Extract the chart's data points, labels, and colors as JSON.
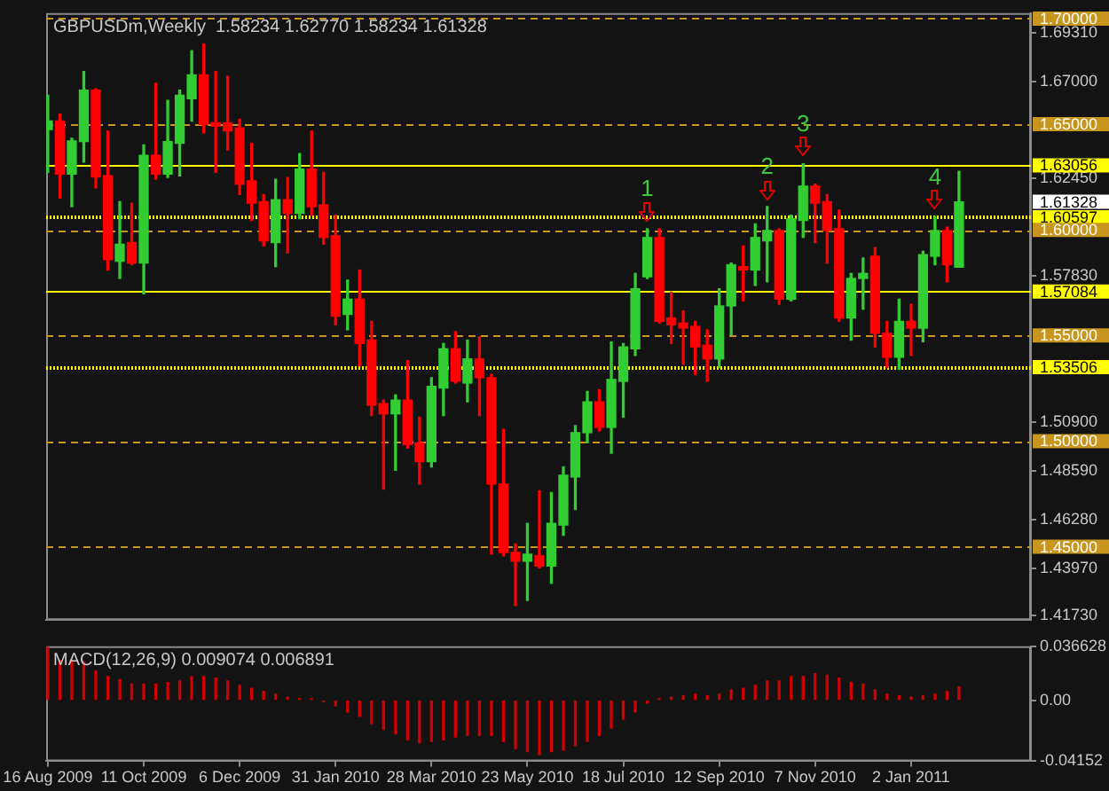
{
  "chart_data": [
    {
      "type": "candlestick",
      "title": "GBPUSDm,Weekly  1.58234 1.62770 1.58234 1.61328",
      "x": [
        "2009-08-16",
        "2009-08-23",
        "2009-08-30",
        "2009-09-06",
        "2009-09-13",
        "2009-09-20",
        "2009-09-27",
        "2009-10-04",
        "2009-10-11",
        "2009-10-18",
        "2009-10-25",
        "2009-11-01",
        "2009-11-08",
        "2009-11-15",
        "2009-11-22",
        "2009-11-29",
        "2009-12-06",
        "2009-12-13",
        "2009-12-20",
        "2009-12-27",
        "2010-01-03",
        "2010-01-10",
        "2010-01-17",
        "2010-01-24",
        "2010-01-31",
        "2010-02-07",
        "2010-02-14",
        "2010-02-21",
        "2010-02-28",
        "2010-03-07",
        "2010-03-14",
        "2010-03-21",
        "2010-03-28",
        "2010-04-04",
        "2010-04-11",
        "2010-04-18",
        "2010-04-25",
        "2010-05-02",
        "2010-05-09",
        "2010-05-16",
        "2010-05-23",
        "2010-05-30",
        "2010-06-06",
        "2010-06-13",
        "2010-06-20",
        "2010-06-27",
        "2010-07-04",
        "2010-07-11",
        "2010-07-18",
        "2010-07-25",
        "2010-08-01",
        "2010-08-08",
        "2010-08-15",
        "2010-08-22",
        "2010-08-29",
        "2010-09-05",
        "2010-09-12",
        "2010-09-19",
        "2010-09-26",
        "2010-10-03",
        "2010-10-10",
        "2010-10-17",
        "2010-10-24",
        "2010-10-31",
        "2010-11-07",
        "2010-11-14",
        "2010-11-21",
        "2010-11-28",
        "2010-12-05",
        "2010-12-12",
        "2010-12-19",
        "2010-12-26",
        "2011-01-02",
        "2011-01-09",
        "2011-01-16",
        "2011-01-23",
        "2011-01-30"
      ],
      "ohlc": [
        [
          1.6475,
          1.6637,
          1.6272,
          1.6515
        ],
        [
          1.6515,
          1.6548,
          1.6151,
          1.6264
        ],
        [
          1.6264,
          1.6434,
          1.611,
          1.6421
        ],
        [
          1.6418,
          1.675,
          1.6321,
          1.6661
        ],
        [
          1.6661,
          1.6669,
          1.6199,
          1.625
        ],
        [
          1.6256,
          1.6467,
          1.581,
          1.5859
        ],
        [
          1.5851,
          1.6134,
          1.577,
          1.5932
        ],
        [
          1.594,
          1.6126,
          1.5835,
          1.5843
        ],
        [
          1.5843,
          1.6402,
          1.5697,
          1.6353
        ],
        [
          1.6353,
          1.6694,
          1.624,
          1.6264
        ],
        [
          1.6264,
          1.6613,
          1.6248,
          1.6418
        ],
        [
          1.641,
          1.6661,
          1.6256,
          1.6637
        ],
        [
          1.6621,
          1.6848,
          1.6515,
          1.6734
        ],
        [
          1.6734,
          1.688,
          1.6459,
          1.6499
        ],
        [
          1.6507,
          1.675,
          1.6272,
          1.6491
        ],
        [
          1.6507,
          1.6726,
          1.6378,
          1.6469
        ],
        [
          1.6483,
          1.6524,
          1.6167,
          1.6216
        ],
        [
          1.6232,
          1.641,
          1.6045,
          1.6126
        ],
        [
          1.6134,
          1.6167,
          1.5924,
          1.5948
        ],
        [
          1.594,
          1.624,
          1.5826,
          1.6143
        ],
        [
          1.6143,
          1.6248,
          1.5891,
          1.6078
        ],
        [
          1.6078,
          1.6361,
          1.6053,
          1.6288
        ],
        [
          1.6288,
          1.6467,
          1.607,
          1.611
        ],
        [
          1.6118,
          1.6272,
          1.5932,
          1.5964
        ],
        [
          1.5972,
          1.607,
          1.5551,
          1.5591
        ],
        [
          1.56,
          1.5762,
          1.5527,
          1.5672
        ],
        [
          1.5672,
          1.581,
          1.5356,
          1.5462
        ],
        [
          1.5478,
          1.5567,
          1.5121,
          1.517
        ],
        [
          1.5178,
          1.5194,
          1.4773,
          1.5129
        ],
        [
          1.5129,
          1.5219,
          1.4862,
          1.5194
        ],
        [
          1.5194,
          1.5381,
          1.4967,
          1.4984
        ],
        [
          1.4992,
          1.5113,
          1.4797,
          1.4903
        ],
        [
          1.4903,
          1.53,
          1.4878,
          1.5259
        ],
        [
          1.5251,
          1.5462,
          1.5121,
          1.5437
        ],
        [
          1.5437,
          1.5518,
          1.5275,
          1.5283
        ],
        [
          1.5275,
          1.5478,
          1.5186,
          1.5389
        ],
        [
          1.5389,
          1.5494,
          1.5121,
          1.53
        ],
        [
          1.53,
          1.5316,
          1.4465,
          1.4797
        ],
        [
          1.4797,
          1.5056,
          1.4457,
          1.4473
        ],
        [
          1.4473,
          1.4513,
          1.4222,
          1.4432
        ],
        [
          1.4432,
          1.4611,
          1.4246,
          1.4465
        ],
        [
          1.4457,
          1.4765,
          1.44,
          1.4408
        ],
        [
          1.4408,
          1.4757,
          1.4327,
          1.4611
        ],
        [
          1.4603,
          1.4878,
          1.4554,
          1.4838
        ],
        [
          1.483,
          1.5073,
          1.4676,
          1.504
        ],
        [
          1.504,
          1.5235,
          1.4992,
          1.5186
        ],
        [
          1.5186,
          1.5243,
          1.5048,
          1.5065
        ],
        [
          1.5065,
          1.547,
          1.4943,
          1.5292
        ],
        [
          1.5283,
          1.5462,
          1.5113,
          1.5446
        ],
        [
          1.5437,
          1.5794,
          1.5405,
          1.5721
        ],
        [
          1.5778,
          1.6005,
          1.577,
          1.5964
        ],
        [
          1.5964,
          1.6005,
          1.5559,
          1.5567
        ],
        [
          1.5583,
          1.5705,
          1.5462,
          1.5551
        ],
        [
          1.5559,
          1.5616,
          1.5364,
          1.5535
        ],
        [
          1.5543,
          1.5567,
          1.5316,
          1.5446
        ],
        [
          1.5454,
          1.5527,
          1.5283,
          1.5389
        ],
        [
          1.5389,
          1.5721,
          1.5348,
          1.564
        ],
        [
          1.564,
          1.5843,
          1.5502,
          1.5835
        ],
        [
          1.5826,
          1.5924,
          1.5664,
          1.581
        ],
        [
          1.581,
          1.6029,
          1.5737,
          1.5964
        ],
        [
          1.5948,
          1.611,
          1.5754,
          1.5997
        ],
        [
          1.5997,
          1.6005,
          1.5648,
          1.5672
        ],
        [
          1.5672,
          1.607,
          1.5664,
          1.6053
        ],
        [
          1.6045,
          1.6313,
          1.5964,
          1.6207
        ],
        [
          1.6207,
          1.6216,
          1.594,
          1.6126
        ],
        [
          1.6134,
          1.6167,
          1.5843,
          1.5997
        ],
        [
          1.6005,
          1.6094,
          1.5567,
          1.5583
        ],
        [
          1.5583,
          1.5794,
          1.5478,
          1.577
        ],
        [
          1.577,
          1.5867,
          1.5624,
          1.5794
        ],
        [
          1.5875,
          1.5916,
          1.5446,
          1.551
        ],
        [
          1.551,
          1.5567,
          1.5348,
          1.5397
        ],
        [
          1.5397,
          1.5672,
          1.534,
          1.5567
        ],
        [
          1.5567,
          1.5648,
          1.5405,
          1.5535
        ],
        [
          1.5535,
          1.5899,
          1.547,
          1.5883
        ],
        [
          1.5875,
          1.6062,
          1.5835,
          1.5997
        ],
        [
          1.5997,
          1.6013,
          1.5754,
          1.5835
        ],
        [
          1.58234,
          1.6277,
          1.58234,
          1.61328
        ]
      ],
      "colors": [
        "#32cd32",
        "#ff0000",
        "#32cd32",
        "#32cd32",
        "#ff0000",
        "#ff0000",
        "#32cd32",
        "#ff0000",
        "#32cd32",
        "#ff0000",
        "#32cd32",
        "#32cd32",
        "#32cd32",
        "#ff0000",
        "#ff0000",
        "#ff0000",
        "#ff0000",
        "#ff0000",
        "#ff0000",
        "#32cd32",
        "#ff0000",
        "#32cd32",
        "#ff0000",
        "#ff0000",
        "#ff0000",
        "#32cd32",
        "#ff0000",
        "#ff0000",
        "#ff0000",
        "#32cd32",
        "#ff0000",
        "#ff0000",
        "#32cd32",
        "#32cd32",
        "#ff0000",
        "#32cd32",
        "#ff0000",
        "#ff0000",
        "#ff0000",
        "#ff0000",
        "#32cd32",
        "#ff0000",
        "#32cd32",
        "#32cd32",
        "#32cd32",
        "#32cd32",
        "#ff0000",
        "#32cd32",
        "#32cd32",
        "#32cd32",
        "#32cd32",
        "#ff0000",
        "#ff0000",
        "#ff0000",
        "#ff0000",
        "#ff0000",
        "#32cd32",
        "#32cd32",
        "#ff0000",
        "#32cd32",
        "#32cd32",
        "#ff0000",
        "#32cd32",
        "#32cd32",
        "#ff0000",
        "#ff0000",
        "#ff0000",
        "#32cd32",
        "#32cd32",
        "#ff0000",
        "#ff0000",
        "#32cd32",
        "#ff0000",
        "#32cd32",
        "#32cd32",
        "#ff0000",
        "#32cd32"
      ],
      "xlim": [
        "2009-08-15",
        "2011-03-13"
      ],
      "ylim": [
        1.4153,
        1.7026
      ],
      "yticks": [
        {
          "value": 1.6931,
          "label": "1.69310"
        },
        {
          "value": 1.67,
          "label": "1.67000"
        },
        {
          "value": 1.6245,
          "label": "1.62450"
        },
        {
          "value": 1.5783,
          "label": "1.57830"
        },
        {
          "value": 1.509,
          "label": "1.50900"
        },
        {
          "value": 1.4859,
          "label": "1.48590"
        },
        {
          "value": 1.4628,
          "label": "1.46280"
        },
        {
          "value": 1.4397,
          "label": "1.43970"
        },
        {
          "value": 1.4173,
          "label": "1.41730"
        }
      ],
      "tick_labels": "y",
      "ref_lines": [
        {
          "axis": "y",
          "value": 1.7,
          "label": "1.70000",
          "color": "#c8961e",
          "line_style": "dashed"
        },
        {
          "axis": "y",
          "value": 1.65,
          "label": "1.65000",
          "color": "#c8961e",
          "line_style": "dashed"
        },
        {
          "axis": "y",
          "value": 1.63056,
          "label": "1.63056",
          "color": "#ffff00",
          "line_style": "solid"
        },
        {
          "axis": "y",
          "value": 1.60597,
          "label": "1.60597",
          "color": "#ffff00",
          "line_style": "dotted"
        },
        {
          "axis": "y",
          "value": 1.6,
          "label": "1.60000",
          "color": "#c8961e",
          "line_style": "dashed"
        },
        {
          "axis": "y",
          "value": 1.57084,
          "label": "1.57084",
          "color": "#ffff00",
          "line_style": "solid"
        },
        {
          "axis": "y",
          "value": 1.55,
          "label": "1.55000",
          "color": "#c8961e",
          "line_style": "dashed"
        },
        {
          "axis": "y",
          "value": 1.53506,
          "label": "1.53506",
          "color": "#ffff00",
          "line_style": "dotted"
        },
        {
          "axis": "y",
          "value": 1.5,
          "label": "1.50000",
          "color": "#c8961e",
          "line_style": "dashed"
        },
        {
          "axis": "y",
          "value": 1.45,
          "label": "1.45000",
          "color": "#c8961e",
          "line_style": "dashed"
        }
      ],
      "annotations": [
        {
          "text": "1",
          "x": "2010-08-01",
          "y": 1.6005
        },
        {
          "text": "2",
          "x": "2010-10-10",
          "y": 1.611
        },
        {
          "text": "3",
          "x": "2010-10-31",
          "y": 1.6313
        },
        {
          "text": "4",
          "x": "2011-01-16",
          "y": 1.6062
        },
        "1.61328"
      ]
    },
    {
      "type": "bar",
      "title": "MACD(12,26,9) 0.009074 0.006891",
      "x": [
        "2009-08-16",
        "2009-08-23",
        "2009-08-30",
        "2009-09-06",
        "2009-09-13",
        "2009-09-20",
        "2009-09-27",
        "2009-10-04",
        "2009-10-11",
        "2009-10-18",
        "2009-10-25",
        "2009-11-01",
        "2009-11-08",
        "2009-11-15",
        "2009-11-22",
        "2009-11-29",
        "2009-12-06",
        "2009-12-13",
        "2009-12-20",
        "2009-12-27",
        "2010-01-03",
        "2010-01-10",
        "2010-01-17",
        "2010-01-24",
        "2010-01-31",
        "2010-02-07",
        "2010-02-14",
        "2010-02-21",
        "2010-02-28",
        "2010-03-07",
        "2010-03-14",
        "2010-03-21",
        "2010-03-28",
        "2010-04-04",
        "2010-04-11",
        "2010-04-18",
        "2010-04-25",
        "2010-05-02",
        "2010-05-09",
        "2010-05-16",
        "2010-05-23",
        "2010-05-30",
        "2010-06-06",
        "2010-06-13",
        "2010-06-20",
        "2010-06-27",
        "2010-07-04",
        "2010-07-11",
        "2010-07-18",
        "2010-07-25",
        "2010-08-01",
        "2010-08-08",
        "2010-08-15",
        "2010-08-22",
        "2010-08-29",
        "2010-09-05",
        "2010-09-12",
        "2010-09-19",
        "2010-09-26",
        "2010-10-03",
        "2010-10-10",
        "2010-10-17",
        "2010-10-24",
        "2010-10-31",
        "2010-11-07",
        "2010-11-14",
        "2010-11-21",
        "2010-11-28",
        "2010-12-05",
        "2010-12-12",
        "2010-12-19",
        "2010-12-26",
        "2011-01-02",
        "2011-01-09",
        "2011-01-16",
        "2011-01-23",
        "2011-01-30"
      ],
      "values": [
        0.036,
        0.027,
        0.027,
        0.026,
        0.02,
        0.016,
        0.014,
        0.011,
        0.011,
        0.011,
        0.012,
        0.013,
        0.016,
        0.016,
        0.015,
        0.013,
        0.01,
        0.008,
        0.006,
        0.004,
        0.002,
        0.001,
        0.001,
        -0.001,
        -0.004,
        -0.008,
        -0.011,
        -0.016,
        -0.02,
        -0.023,
        -0.027,
        -0.029,
        -0.028,
        -0.027,
        -0.025,
        -0.024,
        -0.024,
        -0.024,
        -0.028,
        -0.033,
        -0.035,
        -0.037,
        -0.035,
        -0.034,
        -0.031,
        -0.028,
        -0.024,
        -0.019,
        -0.013,
        -0.008,
        -0.002,
        0.001,
        0.002,
        0.003,
        0.004,
        0.003,
        0.004,
        0.007,
        0.008,
        0.01,
        0.013,
        0.013,
        0.016,
        0.016,
        0.018,
        0.017,
        0.015,
        0.012,
        0.011,
        0.007,
        0.004,
        0.003,
        0.002,
        0.003,
        0.004,
        0.006,
        0.009
      ],
      "color": "#d00000",
      "xlim": [
        "2009-08-15",
        "2011-03-13"
      ],
      "xticks": [
        {
          "value": "2009-08-16",
          "label": "16 Aug 2009"
        },
        {
          "value": "2009-10-11",
          "label": "11 Oct 2009"
        },
        {
          "value": "2009-12-06",
          "label": "6 Dec 2009"
        },
        {
          "value": "2010-01-31",
          "label": "31 Jan 2010"
        },
        {
          "value": "2010-03-28",
          "label": "28 Mar 2010"
        },
        {
          "value": "2010-05-23",
          "label": "23 May 2010"
        },
        {
          "value": "2010-07-18",
          "label": "18 Jul 2010"
        },
        {
          "value": "2010-09-12",
          "label": "12 Sep 2010"
        },
        {
          "value": "2010-11-07",
          "label": "7 Nov 2010"
        },
        {
          "value": "2011-01-02",
          "label": "2 Jan 2011"
        }
      ],
      "ylim": [
        -0.04152,
        0.036628
      ],
      "yticks": [
        {
          "value": 0.036628,
          "label": "0.036628"
        },
        {
          "value": 0,
          "label": "0.00"
        },
        {
          "value": -0.04152,
          "label": "-0.04152"
        }
      ]
    }
  ]
}
